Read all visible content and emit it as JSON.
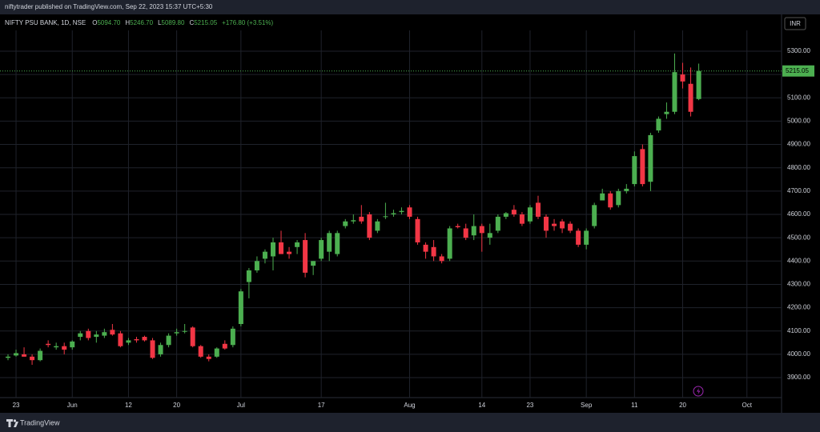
{
  "header": {
    "publisher": "niftytrader published on TradingView.com, Sep 22, 2023 15:37 UTC+5:30"
  },
  "footer": {
    "brand": "TradingView"
  },
  "chart_data": {
    "type": "candlestick",
    "legend": {
      "symbol": "NIFTY PSU BANK, 1D, NSE",
      "items": [
        {
          "key": "O",
          "value": "5094.70"
        },
        {
          "key": "H",
          "value": "5246.70"
        },
        {
          "key": "L",
          "value": "5089.80"
        },
        {
          "key": "C",
          "value": "5215.05"
        }
      ],
      "change": "+176.80 (+3.51%)"
    },
    "currency": "INR",
    "last_price": {
      "value": 5215.05,
      "label": "5215.05"
    },
    "up_color": "#4caf50",
    "down_color": "#f23645",
    "grid": true,
    "ylim": [
      3811,
      5389
    ],
    "yticks": [
      {
        "value": 3900,
        "label": "3900.00"
      },
      {
        "value": 4000,
        "label": "4000.00"
      },
      {
        "value": 4100,
        "label": "4100.00"
      },
      {
        "value": 4200,
        "label": "4200.00"
      },
      {
        "value": 4300,
        "label": "4300.00"
      },
      {
        "value": 4400,
        "label": "4400.00"
      },
      {
        "value": 4500,
        "label": "4500.00"
      },
      {
        "value": 4600,
        "label": "4600.00"
      },
      {
        "value": 4700,
        "label": "4700.00"
      },
      {
        "value": 4800,
        "label": "4800.00"
      },
      {
        "value": 4900,
        "label": "4900.00"
      },
      {
        "value": 5000,
        "label": "5000.00"
      },
      {
        "value": 5100,
        "label": "5100.00"
      },
      {
        "value": 5200,
        "label": "5200.00"
      },
      {
        "value": 5300,
        "label": "5300.00"
      }
    ],
    "xticks": [
      {
        "index": 1,
        "label": "23"
      },
      {
        "index": 8,
        "label": "Jun"
      },
      {
        "index": 15,
        "label": "12"
      },
      {
        "index": 21,
        "label": "20"
      },
      {
        "index": 29,
        "label": "Jul"
      },
      {
        "index": 39,
        "label": "17"
      },
      {
        "index": 50,
        "label": "Aug"
      },
      {
        "index": 59,
        "label": "14"
      },
      {
        "index": 65,
        "label": "23"
      },
      {
        "index": 72,
        "label": "Sep"
      },
      {
        "index": 78,
        "label": "11"
      },
      {
        "index": 84,
        "label": "20"
      },
      {
        "index": 92,
        "label": "Oct"
      }
    ],
    "candles": [
      {
        "o": 3985,
        "h": 4000,
        "l": 3975,
        "c": 3990
      },
      {
        "o": 3995,
        "h": 4020,
        "l": 3990,
        "c": 4005
      },
      {
        "o": 4000,
        "h": 4030,
        "l": 3990,
        "c": 3990
      },
      {
        "o": 3990,
        "h": 4000,
        "l": 3955,
        "c": 3975
      },
      {
        "o": 3975,
        "h": 4025,
        "l": 3970,
        "c": 4015
      },
      {
        "o": 4045,
        "h": 4060,
        "l": 4030,
        "c": 4040
      },
      {
        "o": 4030,
        "h": 4050,
        "l": 4020,
        "c": 4035
      },
      {
        "o": 4035,
        "h": 4050,
        "l": 4000,
        "c": 4020
      },
      {
        "o": 4030,
        "h": 4060,
        "l": 4020,
        "c": 4055
      },
      {
        "o": 4075,
        "h": 4100,
        "l": 4060,
        "c": 4090
      },
      {
        "o": 4100,
        "h": 4110,
        "l": 4060,
        "c": 4070
      },
      {
        "o": 4075,
        "h": 4100,
        "l": 4050,
        "c": 4085
      },
      {
        "o": 4080,
        "h": 4110,
        "l": 4070,
        "c": 4095
      },
      {
        "o": 4105,
        "h": 4130,
        "l": 4080,
        "c": 4085
      },
      {
        "o": 4090,
        "h": 4100,
        "l": 4030,
        "c": 4035
      },
      {
        "o": 4050,
        "h": 4070,
        "l": 4040,
        "c": 4060
      },
      {
        "o": 4065,
        "h": 4075,
        "l": 4050,
        "c": 4060
      },
      {
        "o": 4075,
        "h": 4080,
        "l": 4055,
        "c": 4060
      },
      {
        "o": 4060,
        "h": 4070,
        "l": 3980,
        "c": 3985
      },
      {
        "o": 4000,
        "h": 4050,
        "l": 3990,
        "c": 4040
      },
      {
        "o": 4040,
        "h": 4090,
        "l": 4030,
        "c": 4080
      },
      {
        "o": 4090,
        "h": 4110,
        "l": 4080,
        "c": 4095
      },
      {
        "o": 4100,
        "h": 4130,
        "l": 4090,
        "c": 4100
      },
      {
        "o": 4115,
        "h": 4120,
        "l": 4030,
        "c": 4035
      },
      {
        "o": 4035,
        "h": 4040,
        "l": 3985,
        "c": 3990
      },
      {
        "o": 3990,
        "h": 4000,
        "l": 3970,
        "c": 3980
      },
      {
        "o": 3990,
        "h": 4030,
        "l": 3985,
        "c": 4025
      },
      {
        "o": 4045,
        "h": 4060,
        "l": 4020,
        "c": 4025
      },
      {
        "o": 4040,
        "h": 4120,
        "l": 4030,
        "c": 4110
      },
      {
        "o": 4130,
        "h": 4280,
        "l": 4120,
        "c": 4270
      },
      {
        "o": 4310,
        "h": 4370,
        "l": 4240,
        "c": 4360
      },
      {
        "o": 4360,
        "h": 4420,
        "l": 4350,
        "c": 4400
      },
      {
        "o": 4410,
        "h": 4450,
        "l": 4390,
        "c": 4440
      },
      {
        "o": 4420,
        "h": 4500,
        "l": 4360,
        "c": 4480
      },
      {
        "o": 4480,
        "h": 4530,
        "l": 4430,
        "c": 4430
      },
      {
        "o": 4440,
        "h": 4460,
        "l": 4410,
        "c": 4430
      },
      {
        "o": 4460,
        "h": 4490,
        "l": 4430,
        "c": 4480
      },
      {
        "o": 4490,
        "h": 4520,
        "l": 4330,
        "c": 4350
      },
      {
        "o": 4380,
        "h": 4400,
        "l": 4340,
        "c": 4400
      },
      {
        "o": 4410,
        "h": 4500,
        "l": 4400,
        "c": 4490
      },
      {
        "o": 4440,
        "h": 4530,
        "l": 4400,
        "c": 4520
      },
      {
        "o": 4430,
        "h": 4530,
        "l": 4420,
        "c": 4520
      },
      {
        "o": 4550,
        "h": 4580,
        "l": 4540,
        "c": 4570
      },
      {
        "o": 4570,
        "h": 4600,
        "l": 4560,
        "c": 4575
      },
      {
        "o": 4590,
        "h": 4640,
        "l": 4560,
        "c": 4570
      },
      {
        "o": 4600,
        "h": 4610,
        "l": 4490,
        "c": 4500
      },
      {
        "o": 4530,
        "h": 4580,
        "l": 4520,
        "c": 4570
      },
      {
        "o": 4590,
        "h": 4650,
        "l": 4580,
        "c": 4592
      },
      {
        "o": 4600,
        "h": 4620,
        "l": 4590,
        "c": 4605
      },
      {
        "o": 4610,
        "h": 4630,
        "l": 4600,
        "c": 4615
      },
      {
        "o": 4630,
        "h": 4640,
        "l": 4580,
        "c": 4590
      },
      {
        "o": 4580,
        "h": 4590,
        "l": 4470,
        "c": 4480
      },
      {
        "o": 4470,
        "h": 4480,
        "l": 4410,
        "c": 4440
      },
      {
        "o": 4460,
        "h": 4490,
        "l": 4400,
        "c": 4420
      },
      {
        "o": 4420,
        "h": 4430,
        "l": 4390,
        "c": 4400
      },
      {
        "o": 4410,
        "h": 4550,
        "l": 4400,
        "c": 4540
      },
      {
        "o": 4550,
        "h": 4560,
        "l": 4540,
        "c": 4545
      },
      {
        "o": 4540,
        "h": 4560,
        "l": 4490,
        "c": 4500
      },
      {
        "o": 4510,
        "h": 4600,
        "l": 4490,
        "c": 4550
      },
      {
        "o": 4550,
        "h": 4560,
        "l": 4440,
        "c": 4520
      },
      {
        "o": 4500,
        "h": 4560,
        "l": 4470,
        "c": 4520
      },
      {
        "o": 4530,
        "h": 4600,
        "l": 4520,
        "c": 4590
      },
      {
        "o": 4590,
        "h": 4610,
        "l": 4580,
        "c": 4605
      },
      {
        "o": 4620,
        "h": 4640,
        "l": 4590,
        "c": 4600
      },
      {
        "o": 4600,
        "h": 4610,
        "l": 4550,
        "c": 4560
      },
      {
        "o": 4570,
        "h": 4640,
        "l": 4560,
        "c": 4630
      },
      {
        "o": 4650,
        "h": 4680,
        "l": 4580,
        "c": 4590
      },
      {
        "o": 4590,
        "h": 4600,
        "l": 4500,
        "c": 4530
      },
      {
        "o": 4560,
        "h": 4580,
        "l": 4530,
        "c": 4550
      },
      {
        "o": 4570,
        "h": 4580,
        "l": 4520,
        "c": 4540
      },
      {
        "o": 4560,
        "h": 4570,
        "l": 4520,
        "c": 4530
      },
      {
        "o": 4530,
        "h": 4540,
        "l": 4460,
        "c": 4470
      },
      {
        "o": 4470,
        "h": 4540,
        "l": 4450,
        "c": 4530
      },
      {
        "o": 4550,
        "h": 4650,
        "l": 4540,
        "c": 4640
      },
      {
        "o": 4660,
        "h": 4710,
        "l": 4660,
        "c": 4690
      },
      {
        "o": 4690,
        "h": 4700,
        "l": 4620,
        "c": 4630
      },
      {
        "o": 4640,
        "h": 4710,
        "l": 4630,
        "c": 4700
      },
      {
        "o": 4700,
        "h": 4730,
        "l": 4690,
        "c": 4710
      },
      {
        "o": 4730,
        "h": 4870,
        "l": 4720,
        "c": 4850
      },
      {
        "o": 4880,
        "h": 4900,
        "l": 4720,
        "c": 4730
      },
      {
        "o": 4740,
        "h": 4950,
        "l": 4700,
        "c": 4940
      },
      {
        "o": 4960,
        "h": 5020,
        "l": 4950,
        "c": 5010
      },
      {
        "o": 5030,
        "h": 5080,
        "l": 5010,
        "c": 5040
      },
      {
        "o": 5040,
        "h": 5290,
        "l": 5030,
        "c": 5210
      },
      {
        "o": 5200,
        "h": 5250,
        "l": 5140,
        "c": 5170
      },
      {
        "o": 5160,
        "h": 5230,
        "l": 5020,
        "c": 5040
      },
      {
        "o": 5094.7,
        "h": 5246.7,
        "l": 5089.8,
        "c": 5215.05
      }
    ]
  }
}
